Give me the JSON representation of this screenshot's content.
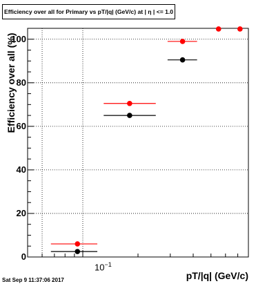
{
  "chart_data": {
    "type": "scatter",
    "title": "Efficiency over all for Primary vs pT/|q| (GeV/c) at | η | <= 1.0",
    "xlabel": "pT/|q| (GeV/c)",
    "ylabel": "Efficiency over all (%)",
    "xscale": "log",
    "x_tick_label_base": "10",
    "x_tick_label_exp": "−1",
    "y_ticks": [
      "0",
      "20",
      "40",
      "60",
      "80",
      "100"
    ],
    "ylim": [
      0,
      105
    ],
    "grid": true,
    "series": [
      {
        "color": "#ff0000",
        "points": [
          {
            "x": 0.0935,
            "xlo": 0.067,
            "xhi": 0.12,
            "y": 6
          },
          {
            "x": 0.18,
            "xlo": 0.13,
            "xhi": 0.25,
            "y": 70.5
          },
          {
            "x": 0.35,
            "xlo": 0.29,
            "xhi": 0.42,
            "y": 99
          },
          {
            "x": 0.55,
            "y": 104.7
          },
          {
            "x": 0.72,
            "y": 104.7
          }
        ]
      },
      {
        "color": "#000000",
        "points": [
          {
            "x": 0.0935,
            "xlo": 0.067,
            "xhi": 0.12,
            "y": 2.5
          },
          {
            "x": 0.18,
            "xlo": 0.13,
            "xhi": 0.25,
            "y": 65
          },
          {
            "x": 0.35,
            "xlo": 0.29,
            "xhi": 0.42,
            "y": 90.5
          }
        ]
      }
    ]
  },
  "footer": {
    "timestamp": "Sat Sep  9 11:37:06 2017"
  }
}
